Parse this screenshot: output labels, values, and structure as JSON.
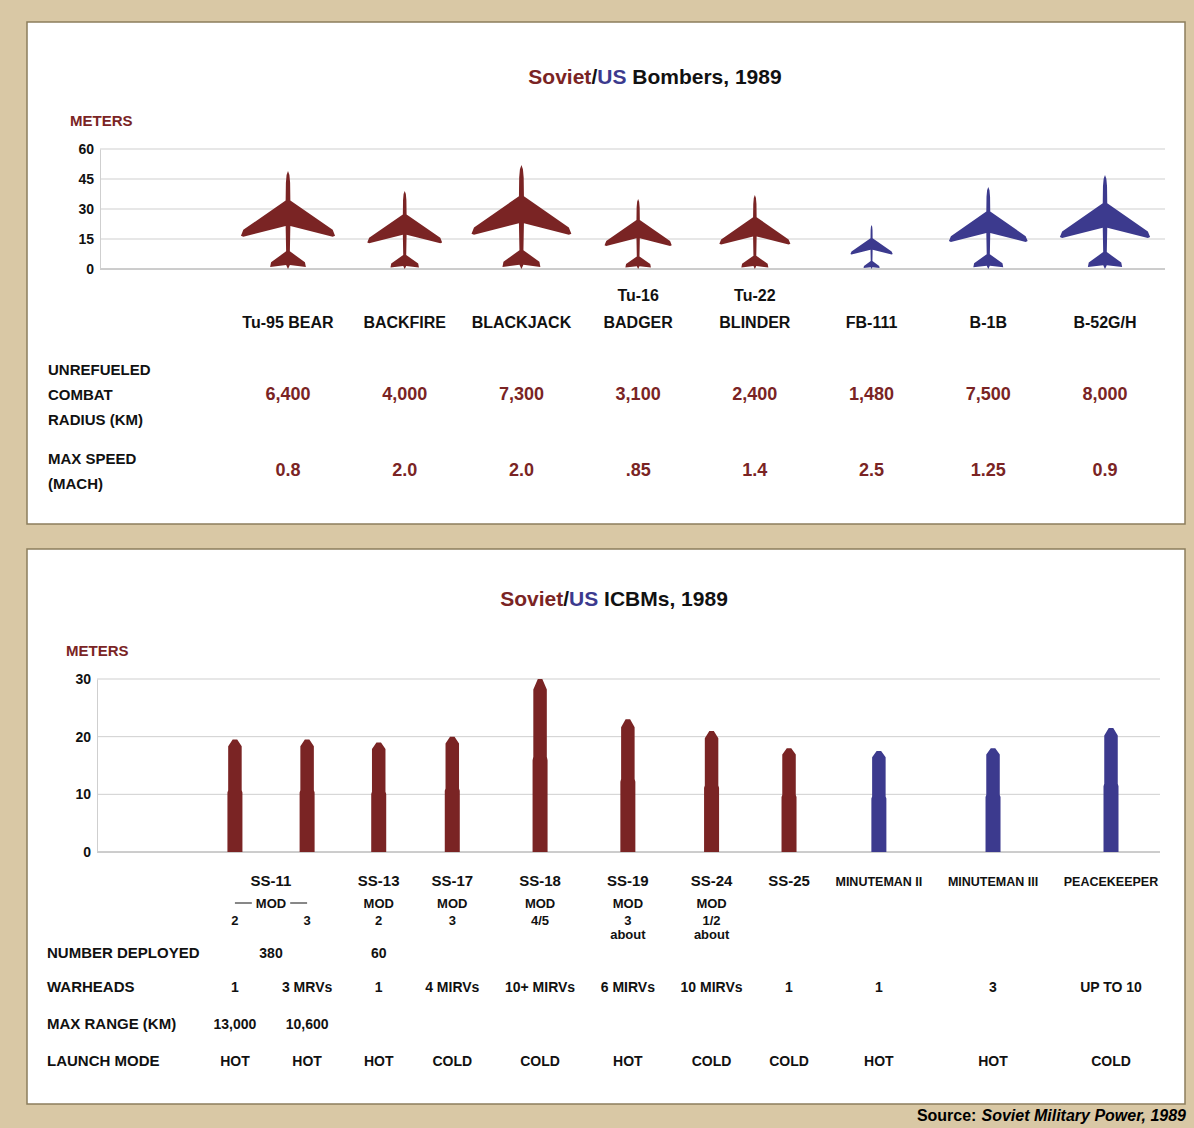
{
  "chart_data": [
    {
      "type": "pictogram",
      "marker": "aircraft",
      "title": "Soviet/US Bombers, 1989",
      "y_label": "METERS",
      "categories": [
        "Tu-95 BEAR",
        "BACKFIRE",
        "BLACKJACK",
        "Tu-16\nBADGER",
        "Tu-22\nBLINDER",
        "FB-111",
        "B-1B",
        "B-52G/H"
      ],
      "series": [
        {
          "name": "Soviet",
          "color": "#7a2424",
          "values": [
            49,
            39,
            52,
            35,
            37,
            null,
            null,
            null
          ]
        },
        {
          "name": "US",
          "color": "#3c3a8e",
          "values": [
            null,
            null,
            null,
            null,
            null,
            22,
            41,
            47
          ]
        }
      ],
      "ylim": [
        0,
        60
      ],
      "yticks": [
        0,
        15,
        30,
        45,
        60
      ],
      "grid": true,
      "rows": [
        {
          "label": "UNREFUELED\nCOMBAT\nRADIUS (KM)",
          "values": [
            6400,
            4000,
            7300,
            3100,
            2400,
            1480,
            7500,
            8000
          ],
          "value_labels": [
            "6,400",
            "4,000",
            "7,300",
            "3,100",
            "2,400",
            "1,480",
            "7,500",
            "8,000"
          ]
        },
        {
          "label": "MAX SPEED\n(MACH)",
          "values": [
            0.8,
            2.0,
            2.0,
            0.85,
            1.4,
            2.5,
            1.25,
            0.9
          ],
          "value_labels": [
            "0.8",
            "2.0",
            "2.0",
            ".85",
            "1.4",
            "2.5",
            "1.25",
            "0.9"
          ]
        }
      ]
    },
    {
      "type": "pictogram",
      "marker": "missile",
      "title": "Soviet/US ICBMs, 1989",
      "y_label": "METERS",
      "families": [
        {
          "name": "SS-11",
          "mod": "MOD",
          "variants": [
            "2",
            "3"
          ],
          "deployed": 380
        },
        {
          "name": "SS-13",
          "mod": "MOD",
          "variants": [
            "2"
          ],
          "deployed": 60
        },
        {
          "name": "SS-17",
          "mod": "MOD",
          "variants": [
            "3"
          ]
        },
        {
          "name": "SS-18",
          "mod": "MOD",
          "variants": [
            "4/5"
          ]
        },
        {
          "name": "SS-19",
          "mod": "MOD",
          "variants": [
            "3\nabout"
          ]
        },
        {
          "name": "SS-24",
          "mod": "MOD",
          "variants": [
            "1/2\nabout"
          ]
        },
        {
          "name": "SS-25",
          "variants": [
            null
          ]
        },
        {
          "name": "MINUTEMAN II",
          "variants": [
            null
          ]
        },
        {
          "name": "MINUTEMAN III",
          "variants": [
            null
          ]
        },
        {
          "name": "PEACEKEEPER",
          "variants": [
            null
          ]
        }
      ],
      "deployed_label": "NUMBER DEPLOYED",
      "series": [
        {
          "name": "Soviet",
          "color": "#7a2424",
          "values": [
            19.5,
            19.5,
            19,
            20,
            30,
            23,
            21,
            18,
            null,
            null,
            null
          ]
        },
        {
          "name": "US",
          "color": "#3c3a8e",
          "values": [
            null,
            null,
            null,
            null,
            null,
            null,
            null,
            null,
            17.5,
            18,
            21.5
          ]
        }
      ],
      "ylim": [
        0,
        30
      ],
      "yticks": [
        0,
        10,
        20,
        30
      ],
      "grid": true,
      "rows": [
        {
          "label": "WARHEADS",
          "texts": [
            "1",
            "3 MRVs",
            "1",
            "4 MIRVs",
            "10+ MIRVs",
            "6 MIRVs",
            "10 MIRVs",
            "1",
            "1",
            "3",
            "UP TO 10"
          ]
        },
        {
          "label": "MAX RANGE (KM)",
          "values": [
            13000,
            10600,
            null,
            null,
            null,
            null,
            null,
            null,
            null,
            null,
            null
          ],
          "value_labels": [
            "13,000",
            "10,600",
            null,
            null,
            null,
            null,
            null,
            null,
            null,
            null,
            null
          ]
        },
        {
          "label": "LAUNCH MODE",
          "texts": [
            "HOT",
            "HOT",
            "HOT",
            "COLD",
            "COLD",
            "HOT",
            "COLD",
            "COLD",
            "HOT",
            "HOT",
            "COLD"
          ]
        }
      ]
    }
  ],
  "source": {
    "label": "Source:",
    "title": "Soviet Military Power, 1989"
  }
}
